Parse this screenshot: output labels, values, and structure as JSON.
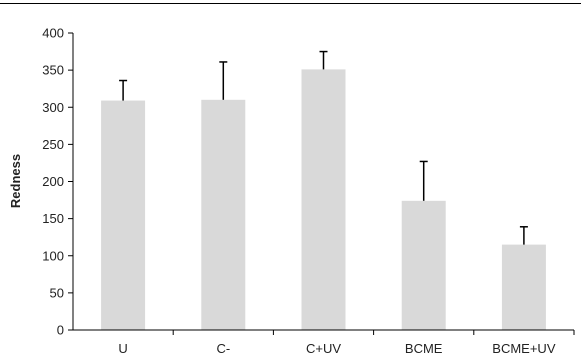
{
  "chart_data": {
    "type": "bar",
    "title": "",
    "xlabel": "",
    "ylabel": "Redness",
    "ylim": [
      0,
      400
    ],
    "yticks": [
      0,
      50,
      100,
      150,
      200,
      250,
      300,
      350,
      400
    ],
    "categories": [
      "U",
      "C-",
      "C+UV",
      "BCME",
      "BCME+UV"
    ],
    "values": [
      309,
      310,
      351,
      174,
      115
    ],
    "error_plus": [
      27,
      51,
      24,
      53,
      24
    ],
    "grid": false,
    "legend": "none",
    "colors": {
      "bar": "#d9d9d9",
      "error_bar": "#000000",
      "axis": "#000000",
      "frame": "#000000"
    }
  }
}
